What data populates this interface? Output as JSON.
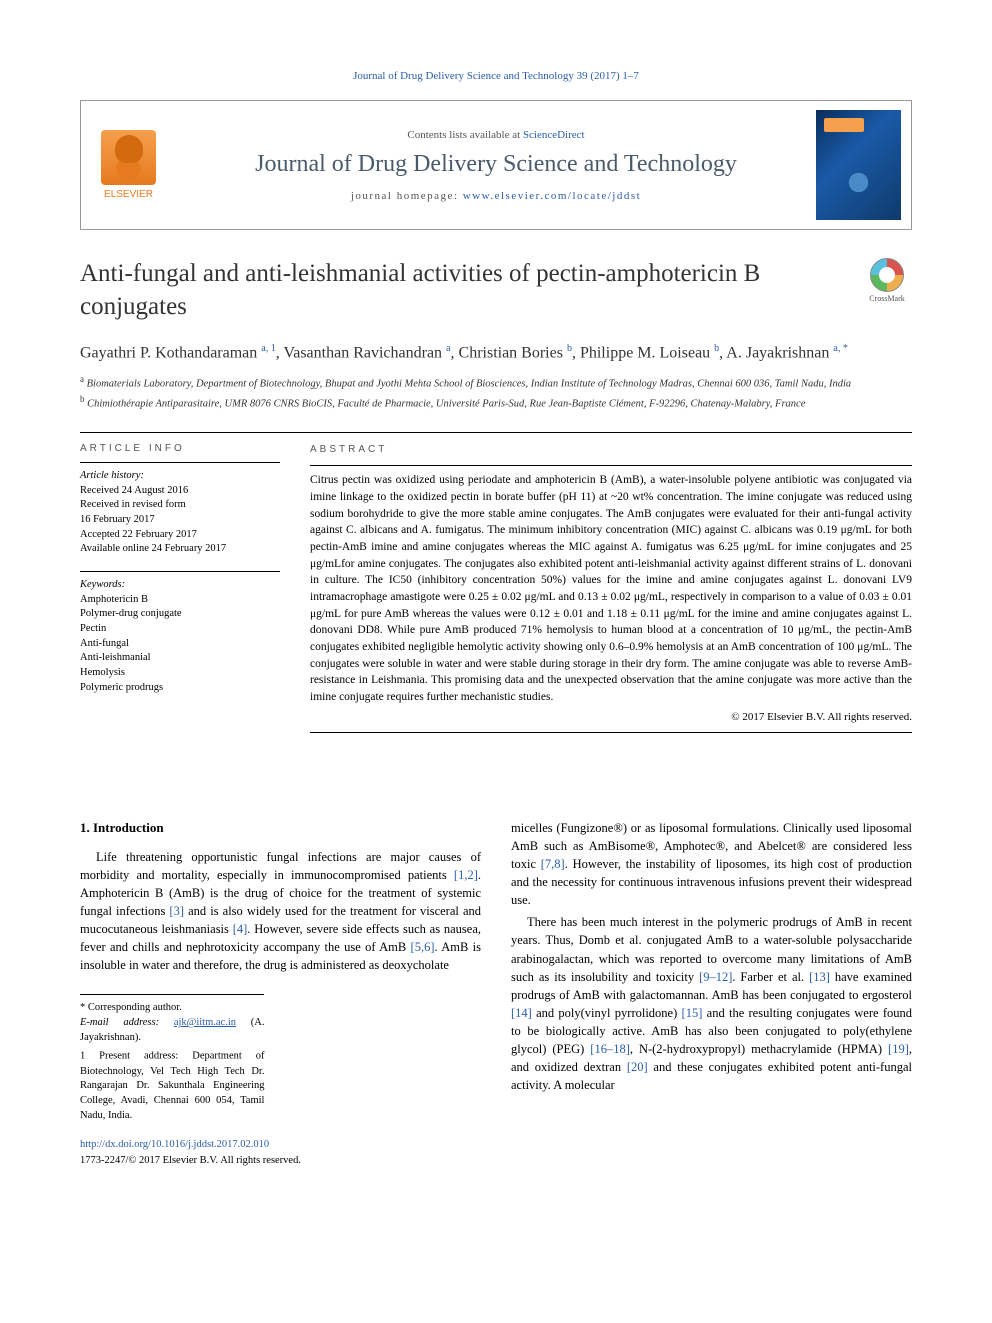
{
  "journal_ref": "Journal of Drug Delivery Science and Technology 39 (2017) 1–7",
  "header": {
    "contents_prefix": "Contents lists available at ",
    "contents_link": "ScienceDirect",
    "journal_name": "Journal of Drug Delivery Science and Technology",
    "homepage_prefix": "journal homepage: ",
    "homepage_url": "www.elsevier.com/locate/jddst",
    "publisher_logo_text": "ELSEVIER",
    "cover_badge": "JDDST"
  },
  "title": "Anti-fungal and anti-leishmanial activities of pectin-amphotericin B conjugates",
  "crossmark_label": "CrossMark",
  "authors_html": "Gayathri P. Kothandaraman <sup>a, 1</sup>, Vasanthan Ravichandran <sup>a</sup>, Christian Bories <sup>b</sup>, Philippe M. Loiseau <sup>b</sup>, A. Jayakrishnan <sup>a, *</sup>",
  "affiliations": {
    "a": "Biomaterials Laboratory, Department of Biotechnology, Bhupat and Jyothi Mehta School of Biosciences, Indian Institute of Technology Madras, Chennai 600 036, Tamil Nadu, India",
    "b": "Chimiothérapie Antiparasitaire, UMR 8076 CNRS BioCIS, Faculté de Pharmacie, Université Paris-Sud, Rue Jean-Baptiste Clément, F-92296, Chatenay-Malabry, France"
  },
  "article_info": {
    "label": "ARTICLE INFO",
    "history_heading": "Article history:",
    "history": [
      "Received 24 August 2016",
      "Received in revised form",
      "16 February 2017",
      "Accepted 22 February 2017",
      "Available online 24 February 2017"
    ],
    "keywords_heading": "Keywords:",
    "keywords": [
      "Amphotericin B",
      "Polymer-drug conjugate",
      "Pectin",
      "Anti-fungal",
      "Anti-leishmanial",
      "Hemolysis",
      "Polymeric prodrugs"
    ]
  },
  "abstract": {
    "label": "ABSTRACT",
    "text": "Citrus pectin was oxidized using periodate and amphotericin B (AmB), a water-insoluble polyene antibiotic was conjugated via imine linkage to the oxidized pectin in borate buffer (pH 11) at ~20 wt% concentration. The imine conjugate was reduced using sodium borohydride to give the more stable amine conjugates. The AmB conjugates were evaluated for their anti-fungal activity against C. albicans and A. fumigatus. The minimum inhibitory concentration (MIC) against C. albicans was 0.19 μg/mL for both pectin-AmB imine and amine conjugates whereas the MIC against A. fumigatus was 6.25 μg/mL for imine conjugates and 25 μg/mLfor amine conjugates. The conjugates also exhibited potent anti-leishmanial activity against different strains of L. donovani in culture. The IC50 (inhibitory concentration 50%) values for the imine and amine conjugates against L. donovani LV9 intramacrophage amastigote were 0.25 ± 0.02 μg/mL and 0.13 ± 0.02 μg/mL, respectively in comparison to a value of 0.03 ± 0.01 μg/mL for pure AmB whereas the values were 0.12 ± 0.01 and 1.18 ± 0.11 μg/mL for the imine and amine conjugates against L. donovani DD8. While pure AmB produced 71% hemolysis to human blood at a concentration of 10 μg/mL, the pectin-AmB conjugates exhibited negligible hemolytic activity showing only 0.6–0.9% hemolysis at an AmB concentration of 100 μg/mL. The conjugates were soluble in water and were stable during storage in their dry form. The amine conjugate was able to reverse AmB-resistance in Leishmania. This promising data and the unexpected observation that the amine conjugate was more active than the imine conjugate requires further mechanistic studies.",
    "copyright": "© 2017 Elsevier B.V. All rights reserved."
  },
  "body": {
    "section_heading": "1. Introduction",
    "col1_p1": "Life threatening opportunistic fungal infections are major causes of morbidity and mortality, especially in immunocompromised patients [1,2]. Amphotericin B (AmB) is the drug of choice for the treatment of systemic fungal infections [3] and is also widely used for the treatment for visceral and mucocutaneous leishmaniasis [4]. However, severe side effects such as nausea, fever and chills and nephrotoxicity accompany the use of AmB [5,6]. AmB is insoluble in water and therefore, the drug is administered as deoxycholate",
    "col2_p1": "micelles (Fungizone®) or as liposomal formulations. Clinically used liposomal AmB such as AmBisome®, Amphotec®, and Abelcet® are considered less toxic [7,8]. However, the instability of liposomes, its high cost of production and the necessity for continuous intravenous infusions prevent their widespread use.",
    "col2_p2": "There has been much interest in the polymeric prodrugs of AmB in recent years. Thus, Domb et al. conjugated AmB to a water-soluble polysaccharide arabinogalactan, which was reported to overcome many limitations of AmB such as its insolubility and toxicity [9–12]. Farber et al. [13] have examined prodrugs of AmB with galactomannan. AmB has been conjugated to ergosterol [14] and poly(vinyl pyrrolidone) [15] and the resulting conjugates were found to be biologically active. AmB has also been conjugated to poly(ethylene glycol) (PEG) [16–18], N-(2-hydroxypropyl) methacrylamide (HPMA) [19], and oxidized dextran [20] and these conjugates exhibited potent anti-fungal activity. A molecular"
  },
  "footnotes": {
    "corresponding": "* Corresponding author.",
    "email_label": "E-mail address: ",
    "email": "ajk@iitm.ac.in",
    "email_author": " (A. Jayakrishnan).",
    "present_address": "1 Present address: Department of Biotechnology, Vel Tech High Tech Dr. Rangarajan Dr. Sakunthala Engineering College, Avadi, Chennai 600 054, Tamil Nadu, India."
  },
  "doi": {
    "url": "http://dx.doi.org/10.1016/j.jddst.2017.02.010",
    "issn_line": "1773-2247/© 2017 Elsevier B.V. All rights reserved."
  },
  "colors": {
    "link": "#2a5da8",
    "publisher_orange": "#e67a1f",
    "text": "#000000",
    "journal_name": "#4a5a6a"
  }
}
